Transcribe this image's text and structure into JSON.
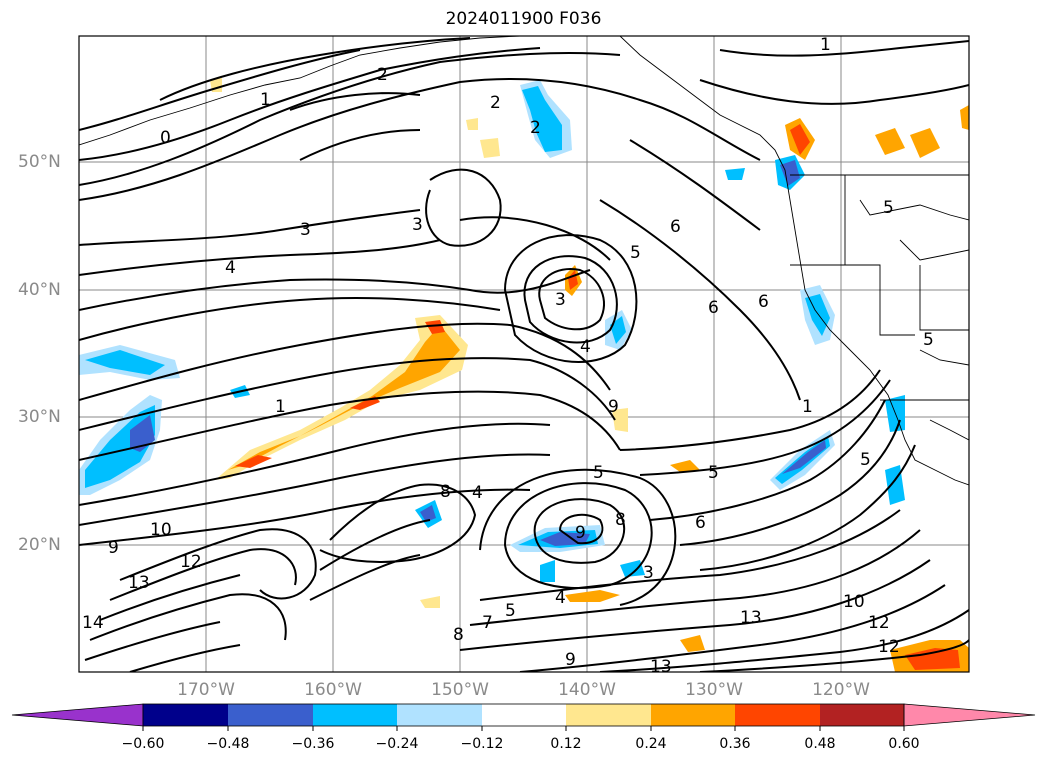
{
  "title": "2024011900 F036",
  "lat_labels": [
    "50°N",
    "40°N",
    "30°N",
    "20°N"
  ],
  "lon_labels": [
    "170°W",
    "160°W",
    "150°W",
    "140°W",
    "130°W",
    "120°W"
  ],
  "colorbar": {
    "ticks": [
      "−0.60",
      "−0.48",
      "−0.36",
      "−0.24",
      "−0.12",
      "0.12",
      "0.24",
      "0.36",
      "0.48",
      "0.60"
    ],
    "colors": [
      "#9932cc",
      "#00008b",
      "#3a5fcd",
      "#00bfff",
      "#b0e2ff",
      "#ffffff",
      "#ffe78f",
      "#ffa500",
      "#ff4500",
      "#b22222",
      "#ff88aa"
    ]
  },
  "contour_labels": [
    "1",
    "2",
    "0",
    "2",
    "2",
    "3",
    "3",
    "4",
    "3",
    "5",
    "6",
    "6",
    "6",
    "4",
    "1",
    "1",
    "9",
    "5",
    "5",
    "5",
    "6",
    "8",
    "8",
    "9",
    "10",
    "9",
    "12",
    "13",
    "14",
    "4",
    "3",
    "5",
    "7",
    "8",
    "9",
    "13",
    "10",
    "12",
    "12",
    "13",
    "4",
    "5",
    "5",
    "1"
  ]
}
